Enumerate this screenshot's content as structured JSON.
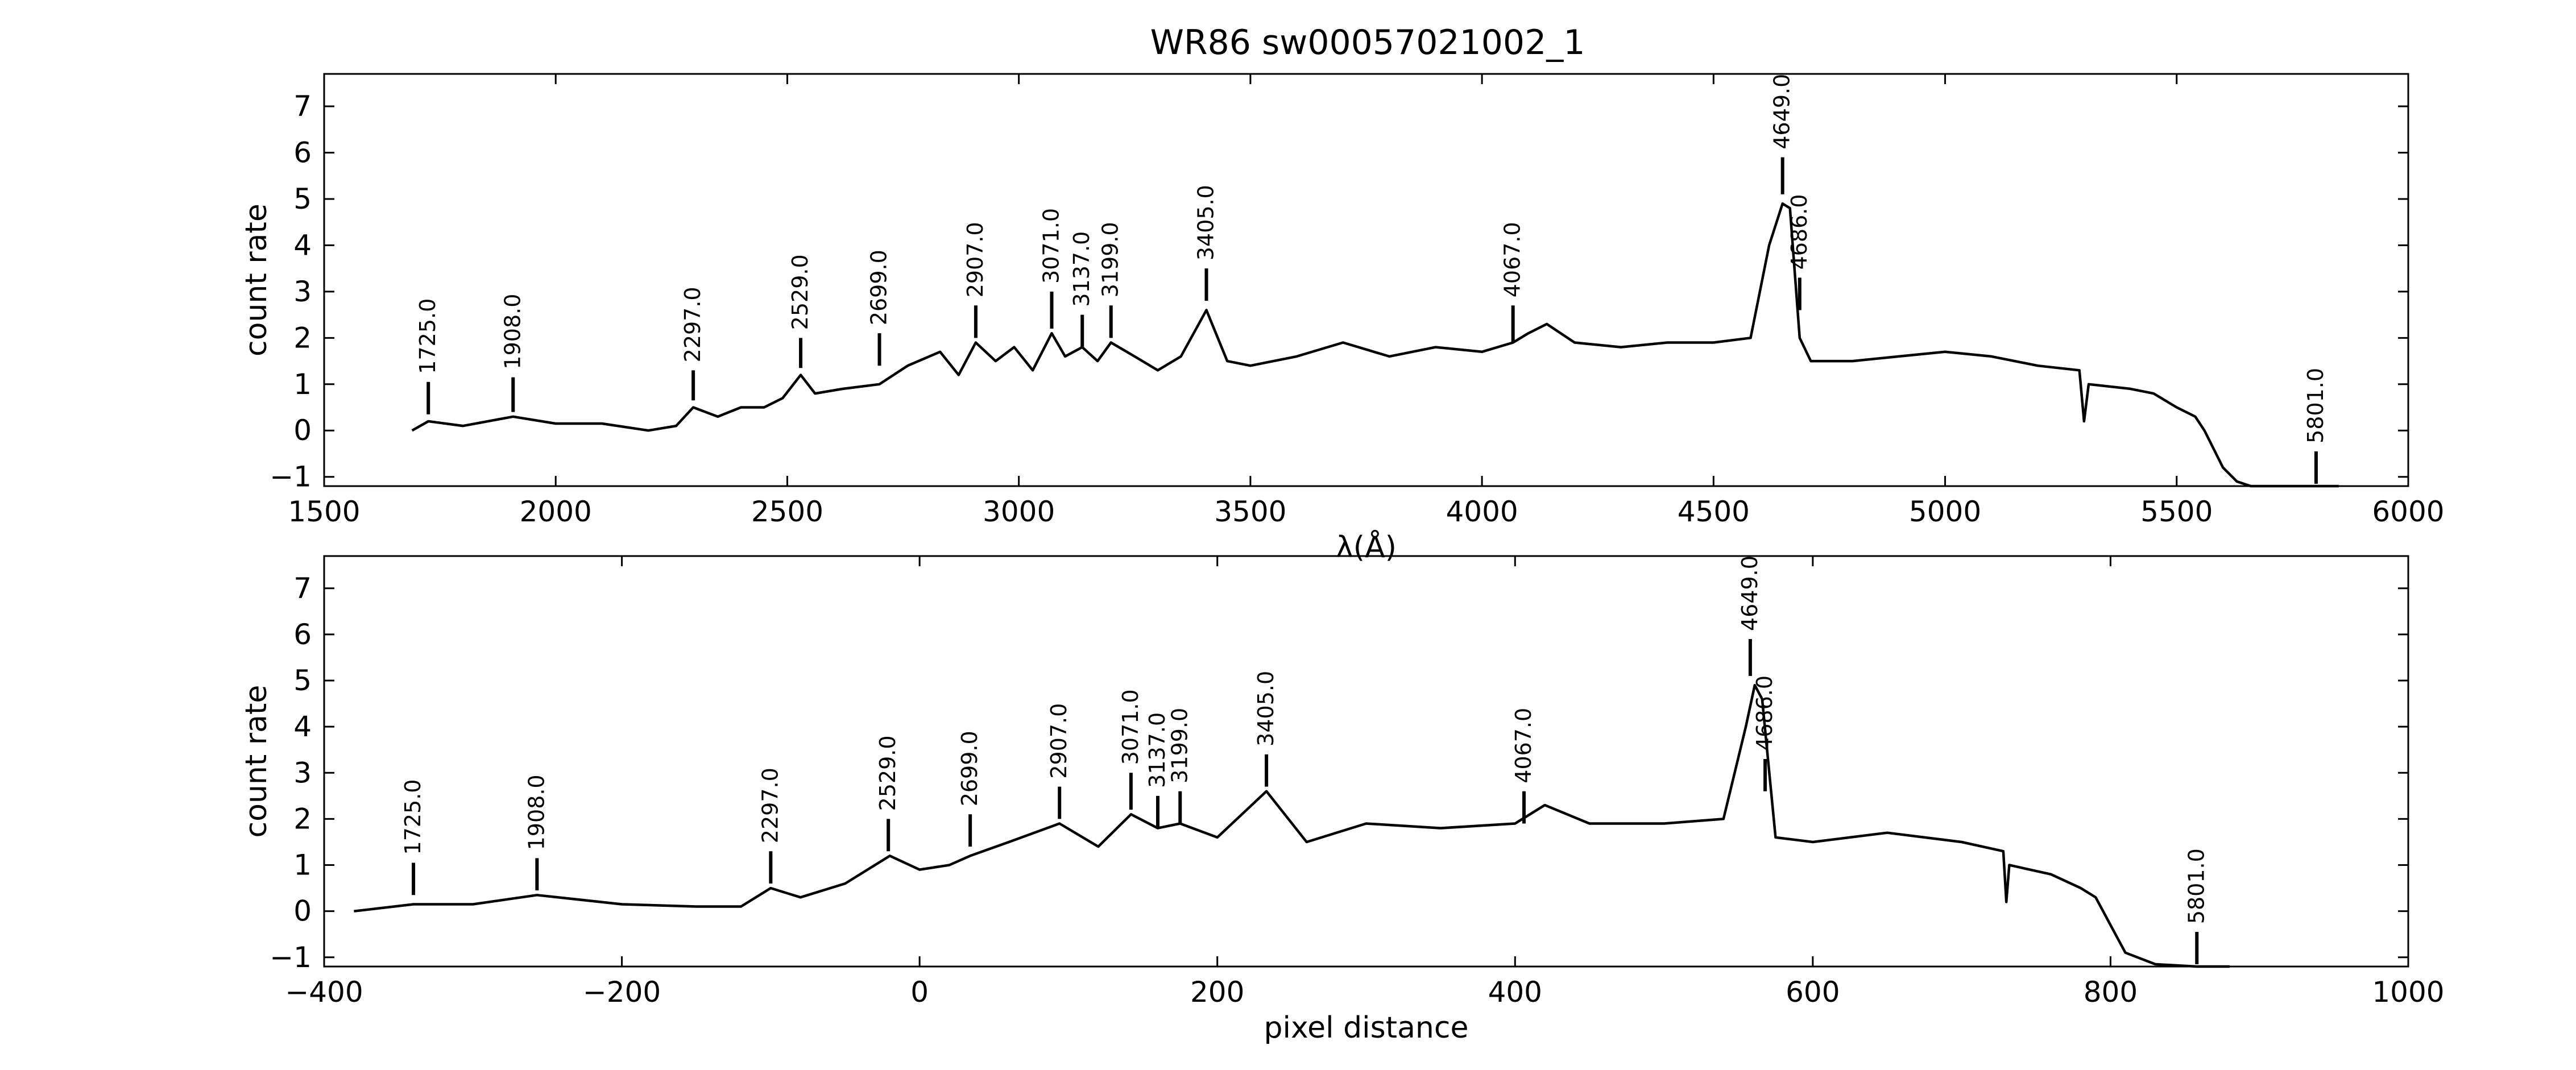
{
  "title": "WR86  sw00057021002_1",
  "line_colors": {
    "spectrum": "#000000",
    "markers": "#000000",
    "frame": "#000000"
  },
  "chart_data": [
    {
      "type": "line",
      "xlabel": "λ(Å)",
      "ylabel": "count rate",
      "xlim": [
        1500,
        6000
      ],
      "ylim": [
        -1.2,
        7.7
      ],
      "xticks": [
        1500,
        2000,
        2500,
        3000,
        3500,
        4000,
        4500,
        5000,
        5500,
        6000
      ],
      "yticks": [
        -1,
        0,
        1,
        2,
        3,
        4,
        5,
        6,
        7
      ],
      "grid": false,
      "series": [
        {
          "x": [
            1690,
            1725,
            1800,
            1908,
            2000,
            2100,
            2200,
            2260,
            2297,
            2350,
            2400,
            2450,
            2490,
            2529,
            2560,
            2620,
            2699,
            2760,
            2830,
            2870,
            2907,
            2950,
            2990,
            3030,
            3071,
            3100,
            3137,
            3170,
            3199,
            3250,
            3300,
            3350,
            3405,
            3450,
            3500,
            3600,
            3700,
            3800,
            3900,
            4000,
            4067,
            4100,
            4140,
            4200,
            4300,
            4400,
            4500,
            4580,
            4620,
            4649,
            4665,
            4686,
            4710,
            4800,
            4900,
            5000,
            5100,
            5200,
            5290,
            5300,
            5310,
            5400,
            5450,
            5500,
            5540,
            5560,
            5580,
            5600,
            5630,
            5660,
            5700,
            5801,
            5850
          ],
          "y": [
            0.0,
            0.2,
            0.1,
            0.3,
            0.15,
            0.15,
            0.0,
            0.1,
            0.5,
            0.3,
            0.5,
            0.5,
            0.7,
            1.2,
            0.8,
            0.9,
            1.0,
            1.4,
            1.7,
            1.2,
            1.9,
            1.5,
            1.8,
            1.3,
            2.1,
            1.6,
            1.8,
            1.5,
            1.9,
            1.6,
            1.3,
            1.6,
            2.6,
            1.5,
            1.4,
            1.6,
            1.9,
            1.6,
            1.8,
            1.7,
            1.9,
            2.1,
            2.3,
            1.9,
            1.8,
            1.9,
            1.9,
            2.0,
            4.0,
            4.9,
            4.8,
            2.0,
            1.5,
            1.5,
            1.6,
            1.7,
            1.6,
            1.4,
            1.3,
            0.2,
            1.0,
            0.9,
            0.8,
            0.5,
            0.3,
            0.0,
            -0.4,
            -0.8,
            -1.1,
            -1.2,
            -1.2,
            -1.2,
            -1.2
          ]
        }
      ],
      "annotations": [
        {
          "x": 1725,
          "y_bottom": 0.35,
          "y_top": 1.05,
          "label": "1725.0"
        },
        {
          "x": 1908,
          "y_bottom": 0.4,
          "y_top": 1.15,
          "label": "1908.0"
        },
        {
          "x": 2297,
          "y_bottom": 0.65,
          "y_top": 1.3,
          "label": "2297.0"
        },
        {
          "x": 2529,
          "y_bottom": 1.35,
          "y_top": 2.0,
          "label": "2529.0"
        },
        {
          "x": 2699,
          "y_bottom": 1.4,
          "y_top": 2.1,
          "label": "2699.0"
        },
        {
          "x": 2907,
          "y_bottom": 2.0,
          "y_top": 2.7,
          "label": "2907.0"
        },
        {
          "x": 3071,
          "y_bottom": 2.2,
          "y_top": 3.0,
          "label": "3071.0"
        },
        {
          "x": 3137,
          "y_bottom": 1.8,
          "y_top": 2.5,
          "label": "3137.0"
        },
        {
          "x": 3199,
          "y_bottom": 2.0,
          "y_top": 2.7,
          "label": "3199.0"
        },
        {
          "x": 3405,
          "y_bottom": 2.8,
          "y_top": 3.5,
          "label": "3405.0"
        },
        {
          "x": 4067,
          "y_bottom": 1.9,
          "y_top": 2.7,
          "label": "4067.0"
        },
        {
          "x": 4649,
          "y_bottom": 5.1,
          "y_top": 5.9,
          "label": "4649.0"
        },
        {
          "x": 4686,
          "y_bottom": 2.6,
          "y_top": 3.3,
          "label": "4686.0"
        },
        {
          "x": 5801,
          "y_bottom": -1.15,
          "y_top": -0.45,
          "label": "5801.0"
        }
      ]
    },
    {
      "type": "line",
      "xlabel": "pixel distance",
      "ylabel": "count rate",
      "xlim": [
        -400,
        1000
      ],
      "ylim": [
        -1.2,
        7.7
      ],
      "xticks": [
        -400,
        -200,
        0,
        200,
        400,
        600,
        800,
        1000
      ],
      "yticks": [
        -1,
        0,
        1,
        2,
        3,
        4,
        5,
        6,
        7
      ],
      "grid": false,
      "series": [
        {
          "x": [
            -380,
            -340,
            -300,
            -257,
            -200,
            -150,
            -120,
            -100,
            -80,
            -50,
            -20,
            0,
            20,
            34,
            60,
            94,
            120,
            142,
            160,
            175,
            200,
            233,
            260,
            300,
            350,
            400,
            420,
            450,
            500,
            540,
            555,
            561,
            566,
            575,
            600,
            650,
            700,
            728,
            730,
            732,
            760,
            780,
            790,
            800,
            810,
            830,
            858,
            880
          ],
          "y": [
            0.0,
            0.15,
            0.15,
            0.35,
            0.15,
            0.1,
            0.1,
            0.5,
            0.3,
            0.6,
            1.2,
            0.9,
            1.0,
            1.2,
            1.5,
            1.9,
            1.4,
            2.1,
            1.8,
            1.9,
            1.6,
            2.6,
            1.5,
            1.9,
            1.8,
            1.9,
            2.3,
            1.9,
            1.9,
            2.0,
            4.0,
            4.9,
            4.6,
            1.6,
            1.5,
            1.7,
            1.5,
            1.3,
            0.2,
            1.0,
            0.8,
            0.5,
            0.3,
            -0.3,
            -0.9,
            -1.15,
            -1.2,
            -1.2
          ]
        }
      ],
      "annotations": [
        {
          "x": -340,
          "y_bottom": 0.35,
          "y_top": 1.05,
          "label": "1725.0"
        },
        {
          "x": -257,
          "y_bottom": 0.45,
          "y_top": 1.15,
          "label": "1908.0"
        },
        {
          "x": -100,
          "y_bottom": 0.6,
          "y_top": 1.3,
          "label": "2297.0"
        },
        {
          "x": -21,
          "y_bottom": 1.3,
          "y_top": 2.0,
          "label": "2529.0"
        },
        {
          "x": 34,
          "y_bottom": 1.4,
          "y_top": 2.1,
          "label": "2699.0"
        },
        {
          "x": 94,
          "y_bottom": 2.0,
          "y_top": 2.7,
          "label": "2907.0"
        },
        {
          "x": 142,
          "y_bottom": 2.2,
          "y_top": 3.0,
          "label": "3071.0"
        },
        {
          "x": 160,
          "y_bottom": 1.8,
          "y_top": 2.5,
          "label": "3137.0"
        },
        {
          "x": 175,
          "y_bottom": 1.9,
          "y_top": 2.6,
          "label": "3199.0"
        },
        {
          "x": 233,
          "y_bottom": 2.7,
          "y_top": 3.4,
          "label": "3405.0"
        },
        {
          "x": 406,
          "y_bottom": 1.9,
          "y_top": 2.6,
          "label": "4067.0"
        },
        {
          "x": 558,
          "y_bottom": 5.1,
          "y_top": 5.9,
          "label": "4649.0"
        },
        {
          "x": 568,
          "y_bottom": 2.6,
          "y_top": 3.3,
          "label": "4686.0"
        },
        {
          "x": 858,
          "y_bottom": -1.15,
          "y_top": -0.45,
          "label": "5801.0"
        }
      ]
    }
  ]
}
